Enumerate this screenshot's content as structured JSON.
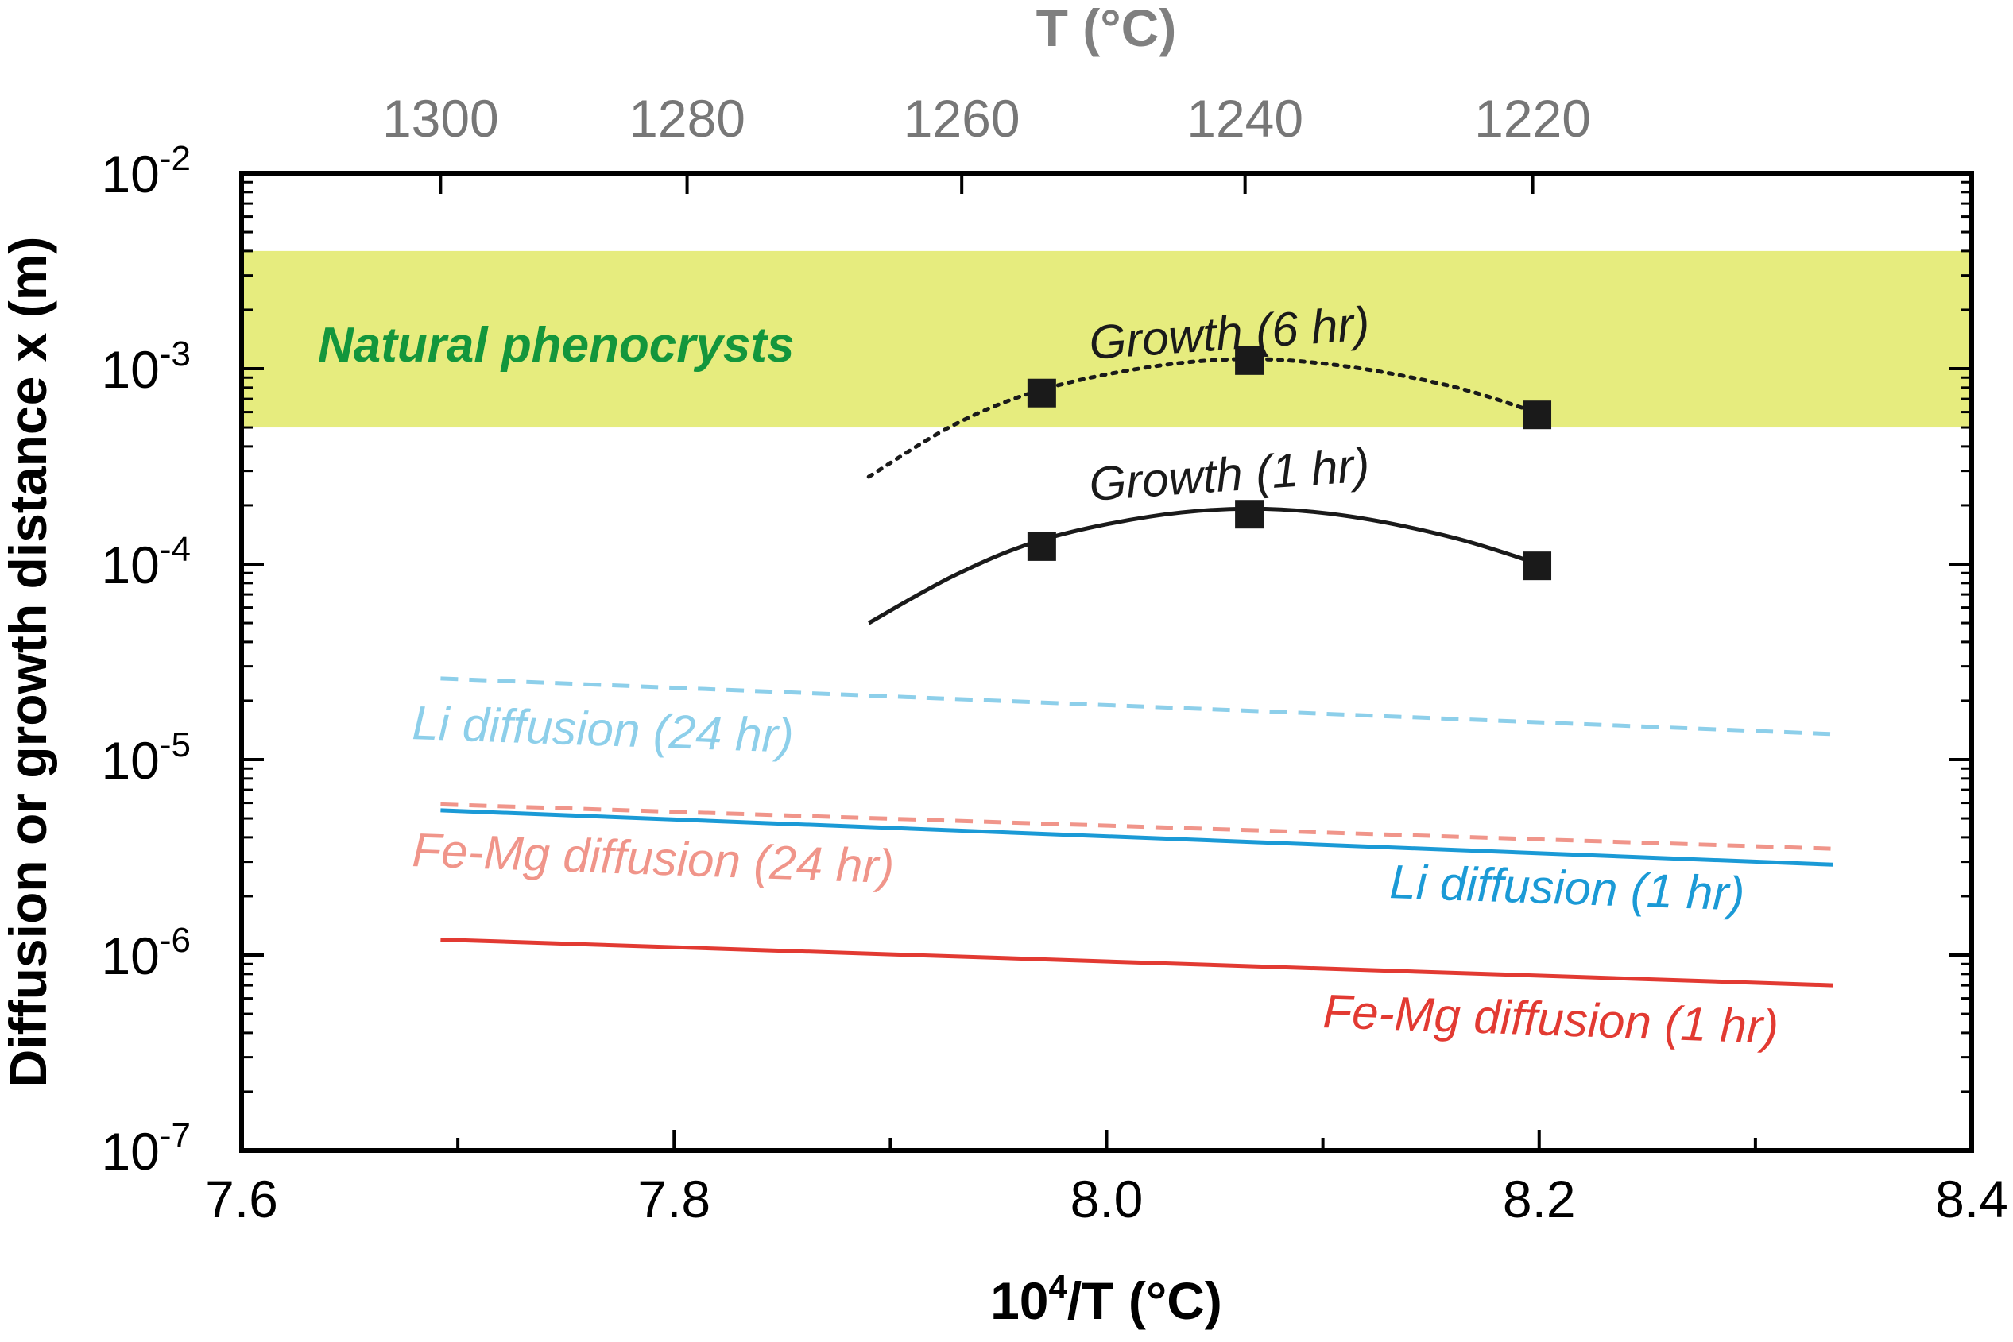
{
  "chart_data": {
    "type": "line",
    "x_axis": {
      "label_base": "10",
      "label_exp": "4",
      "label_rest": "/T (°C)",
      "lim": [
        7.6,
        8.4
      ],
      "ticks": [
        "7.6",
        "7.8",
        "8.0",
        "8.2",
        "8.4"
      ]
    },
    "top_axis": {
      "label": "T (°C)",
      "ticks": [
        {
          "label": "1300",
          "x": 7.692
        },
        {
          "label": "1280",
          "x": 7.806
        },
        {
          "label": "1260",
          "x": 7.933
        },
        {
          "label": "1240",
          "x": 8.064
        },
        {
          "label": "1220",
          "x": 8.197
        }
      ]
    },
    "y_axis": {
      "label": "Diffusion or growth distance x (m)",
      "scale": "log",
      "lim_exp": [
        -7,
        -2
      ],
      "ticks": [
        {
          "base": "10",
          "exp": "-2",
          "value": -2
        },
        {
          "base": "10",
          "exp": "-3",
          "value": -3
        },
        {
          "base": "10",
          "exp": "-4",
          "value": -4
        },
        {
          "base": "10",
          "exp": "-5",
          "value": -5
        },
        {
          "base": "10",
          "exp": "-6",
          "value": -6
        },
        {
          "base": "10",
          "exp": "-7",
          "value": -7
        }
      ]
    },
    "band": {
      "label": "Natural phenocrysts",
      "y_range": [
        0.0005,
        0.004
      ],
      "color": "#e6ec7e",
      "label_color": "#13963c"
    },
    "series": [
      {
        "id": "growth-6hr",
        "name": "Growth (6 hr)",
        "style": "dotted",
        "color": "#1a1a1a",
        "curve": {
          "x": [
            7.89,
            7.93,
            7.97,
            8.02,
            8.065,
            8.11,
            8.16,
            8.2
          ],
          "y": [
            0.00028,
            0.00052,
            0.00078,
            0.00102,
            0.00112,
            0.00103,
            0.00081,
            0.00059
          ]
        },
        "points": {
          "x": [
            7.97,
            8.066,
            8.199
          ],
          "y": [
            0.00075,
            0.0011,
            0.00058
          ]
        }
      },
      {
        "id": "growth-1hr",
        "name": "Growth (1 hr)",
        "style": "solid",
        "color": "#1a1a1a",
        "curve": {
          "x": [
            7.89,
            7.93,
            7.97,
            8.02,
            8.065,
            8.11,
            8.16,
            8.2
          ],
          "y": [
            5e-05,
            8.8e-05,
            0.000133,
            0.000175,
            0.000192,
            0.000177,
            0.000137,
            0.0001
          ]
        },
        "points": {
          "x": [
            7.97,
            8.066,
            8.199
          ],
          "y": [
            0.000123,
            0.00018,
            9.8e-05
          ]
        }
      },
      {
        "id": "li-24hr",
        "name": "Li diffusion (24 hr)",
        "style": "dashed",
        "color": "#8dcfea",
        "curve": {
          "x": [
            7.692,
            8.336
          ],
          "y": [
            2.6e-05,
            1.35e-05
          ]
        }
      },
      {
        "id": "femg-24hr",
        "name": "Fe-Mg diffusion (24 hr)",
        "style": "dashed",
        "color": "#f0958a",
        "curve": {
          "x": [
            7.692,
            8.336
          ],
          "y": [
            5.9e-06,
            3.5e-06
          ]
        }
      },
      {
        "id": "li-1hr",
        "name": "Li diffusion (1 hr)",
        "style": "solid",
        "color": "#1b9ad6",
        "curve": {
          "x": [
            7.692,
            8.336
          ],
          "y": [
            5.5e-06,
            2.9e-06
          ]
        }
      },
      {
        "id": "femg-1hr",
        "name": "Fe-Mg diffusion (1 hr)",
        "style": "solid",
        "color": "#e23a32",
        "curve": {
          "x": [
            7.692,
            8.336
          ],
          "y": [
            1.2e-06,
            7e-07
          ]
        }
      }
    ]
  }
}
